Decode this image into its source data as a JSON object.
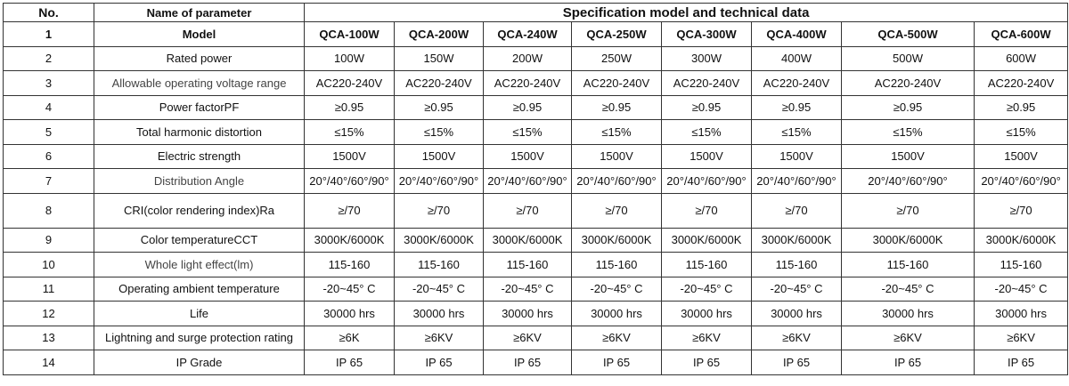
{
  "header": {
    "no": "No.",
    "param": "Name of parameter",
    "spec": "Specification model and technical data"
  },
  "rows": [
    {
      "no": "1",
      "param": "Model",
      "values": [
        "QCA-100W",
        "QCA-200W",
        "QCA-240W",
        "QCA-250W",
        "QCA-300W",
        "QCA-400W",
        "QCA-500W",
        "QCA-600W"
      ]
    },
    {
      "no": "2",
      "param": "Rated power",
      "values": [
        "100W",
        "150W",
        "200W",
        "250W",
        "300W",
        "400W",
        "500W",
        "600W"
      ]
    },
    {
      "no": "3",
      "param": "Allowable operating voltage range",
      "values": [
        "AC220-240V",
        "AC220-240V",
        "AC220-240V",
        "AC220-240V",
        "AC220-240V",
        "AC220-240V",
        "AC220-240V",
        "AC220-240V"
      ]
    },
    {
      "no": "4",
      "param": "Power factorPF",
      "values": [
        "≥0.95",
        "≥0.95",
        "≥0.95",
        "≥0.95",
        "≥0.95",
        "≥0.95",
        "≥0.95",
        "≥0.95"
      ]
    },
    {
      "no": "5",
      "param": "Total harmonic distortion",
      "values": [
        "≤15%",
        "≤15%",
        "≤15%",
        "≤15%",
        "≤15%",
        "≤15%",
        "≤15%",
        "≤15%"
      ]
    },
    {
      "no": "6",
      "param": "Electric strength",
      "values": [
        "1500V",
        "1500V",
        "1500V",
        "1500V",
        "1500V",
        "1500V",
        "1500V",
        "1500V"
      ]
    },
    {
      "no": "7",
      "param": "Distribution Angle",
      "values": [
        "20°/40°/60°/90°",
        "20°/40°/60°/90°",
        "20°/40°/60°/90°",
        "20°/40°/60°/90°",
        "20°/40°/60°/90°",
        "20°/40°/60°/90°",
        "20°/40°/60°/90°",
        "20°/40°/60°/90°"
      ]
    },
    {
      "no": "8",
      "param": "CRI(color rendering index)Ra",
      "values": [
        "≥/70",
        "≥/70",
        "≥/70",
        "≥/70",
        "≥/70",
        "≥/70",
        "≥/70",
        "≥/70"
      ]
    },
    {
      "no": "9",
      "param": "Color temperatureCCT",
      "values": [
        "3000K/6000K",
        "3000K/6000K",
        "3000K/6000K",
        "3000K/6000K",
        "3000K/6000K",
        "3000K/6000K",
        "3000K/6000K",
        "3000K/6000K"
      ]
    },
    {
      "no": "10",
      "param": "Whole light effect(lm)",
      "values": [
        "115-160",
        "115-160",
        "115-160",
        "115-160",
        "115-160",
        "115-160",
        "115-160",
        "115-160"
      ]
    },
    {
      "no": "11",
      "param": "Operating ambient temperature",
      "values": [
        "-20~45° C",
        "-20~45° C",
        "-20~45° C",
        "-20~45° C",
        "-20~45° C",
        "-20~45° C",
        "-20~45° C",
        "-20~45° C"
      ]
    },
    {
      "no": "12",
      "param": "Life",
      "values": [
        "30000 hrs",
        "30000 hrs",
        "30000 hrs",
        "30000 hrs",
        "30000 hrs",
        "30000 hrs",
        "30000 hrs",
        "30000 hrs"
      ]
    },
    {
      "no": "13",
      "param": "Lightning and surge protection rating",
      "values": [
        "≥6K",
        "≥6KV",
        "≥6KV",
        "≥6KV",
        "≥6KV",
        "≥6KV",
        "≥6KV",
        "≥6KV"
      ]
    },
    {
      "no": "14",
      "param": "IP Grade",
      "values": [
        "IP 65",
        "IP 65",
        "IP 65",
        "IP 65",
        "IP 65",
        "IP 65",
        "IP 65",
        "IP 65"
      ]
    }
  ]
}
